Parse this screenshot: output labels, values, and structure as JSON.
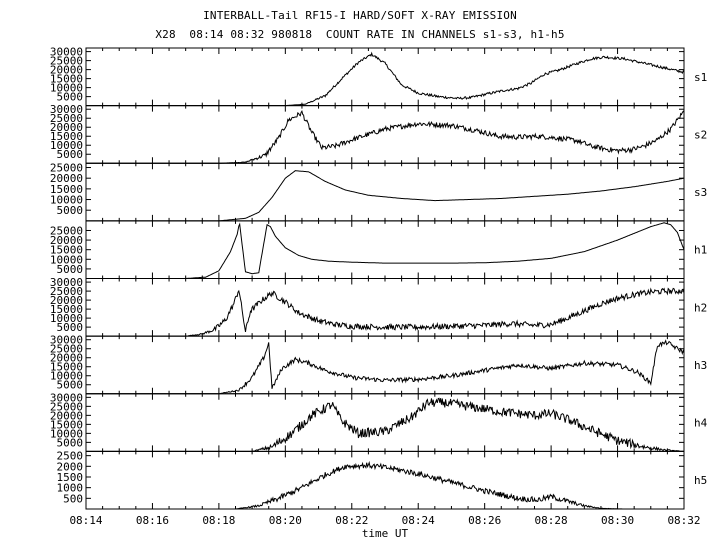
{
  "chart_data": {
    "type": "line",
    "title": "INTERBALL-Tail RF15-I HARD/SOFT X-RAY EMISSION",
    "subtitle": "X28  08:14 08:32 980818  COUNT RATE IN CHANNELS s1-s3, h1-h5",
    "xlabel": "time UT",
    "x_ticks": [
      "08:14",
      "08:16",
      "08:18",
      "08:20",
      "08:22",
      "08:24",
      "08:26",
      "08:28",
      "08:30",
      "08:32"
    ],
    "xlim_minutes": [
      0,
      18
    ],
    "panels": [
      {
        "name": "s1",
        "ylim": [
          0,
          32000
        ],
        "yticks": [
          5000,
          10000,
          15000,
          20000,
          25000,
          30000
        ],
        "x": [
          0,
          6.0,
          6.6,
          7.2,
          7.7,
          8.2,
          8.6,
          9.0,
          9.5,
          10.0,
          10.6,
          11.2,
          11.6,
          12.0,
          12.6,
          13.0,
          13.4,
          13.8,
          14.2,
          14.8,
          15.2,
          15.6,
          16.2,
          16.8,
          17.4,
          18.0
        ],
        "y": [
          0,
          0,
          800,
          5500,
          15000,
          24000,
          28500,
          23500,
          11500,
          7000,
          5000,
          4000,
          4500,
          6200,
          8500,
          9500,
          12500,
          17500,
          19500,
          23500,
          26000,
          27000,
          26000,
          23500,
          21000,
          18500
        ],
        "noise": 700
      },
      {
        "name": "s2",
        "ylim": [
          0,
          32000
        ],
        "yticks": [
          5000,
          10000,
          15000,
          20000,
          25000,
          30000
        ],
        "x": [
          0,
          4.0,
          4.8,
          5.4,
          5.8,
          6.1,
          6.5,
          6.8,
          7.1,
          7.5,
          8.0,
          9.0,
          10.0,
          11.0,
          11.8,
          12.4,
          13.0,
          13.6,
          14.2,
          14.8,
          15.2,
          15.6,
          16.0,
          16.4,
          16.8,
          17.2,
          17.6,
          18.0
        ],
        "y": [
          0,
          0,
          600,
          4500,
          14000,
          24000,
          28000,
          17000,
          8500,
          9500,
          13000,
          19000,
          22000,
          21000,
          18000,
          15000,
          14500,
          15000,
          14000,
          12500,
          9500,
          8000,
          7000,
          7500,
          9500,
          13000,
          19000,
          29000
        ],
        "noise": 1400
      },
      {
        "name": "s3",
        "ylim": [
          0,
          27000
        ],
        "yticks": [
          5000,
          10000,
          15000,
          20000,
          25000
        ],
        "x": [
          0,
          4.0,
          4.8,
          5.2,
          5.6,
          6.0,
          6.3,
          6.7,
          7.2,
          7.8,
          8.5,
          9.5,
          10.5,
          11.5,
          12.5,
          13.5,
          14.5,
          15.5,
          16.5,
          17.5,
          18.0
        ],
        "y": [
          0,
          0,
          1200,
          4000,
          11000,
          20000,
          23500,
          23000,
          18500,
          14500,
          12000,
          10500,
          9500,
          10000,
          10500,
          11500,
          12500,
          14000,
          16000,
          18500,
          20000
        ],
        "noise": 0
      },
      {
        "name": "h1",
        "ylim": [
          0,
          30000
        ],
        "yticks": [
          5000,
          10000,
          15000,
          20000,
          25000
        ],
        "x": [
          0,
          3.0,
          3.6,
          4.0,
          4.35,
          4.55,
          4.62,
          4.8,
          5.0,
          5.2,
          5.45,
          5.55,
          5.7,
          6.0,
          6.4,
          6.8,
          7.3,
          8.0,
          9.0,
          10.0,
          11.0,
          12.0,
          13.0,
          14.0,
          15.0,
          16.0,
          17.0,
          17.4,
          17.6,
          17.8,
          18.0
        ],
        "y": [
          0,
          0,
          700,
          4000,
          14000,
          23000,
          29000,
          3500,
          2500,
          3000,
          28000,
          27000,
          22000,
          16000,
          12000,
          10000,
          9000,
          8500,
          8000,
          8000,
          8000,
          8200,
          9000,
          10500,
          14000,
          20000,
          27000,
          29000,
          28000,
          24000,
          15000
        ],
        "noise": 0
      },
      {
        "name": "h2",
        "ylim": [
          0,
          32000
        ],
        "yticks": [
          5000,
          10000,
          15000,
          20000,
          25000,
          30000
        ],
        "x": [
          0,
          3.0,
          3.5,
          3.9,
          4.2,
          4.45,
          4.6,
          4.8,
          4.95,
          5.3,
          5.6,
          6.0,
          6.4,
          7.0,
          7.5,
          8.0,
          9.0,
          10.0,
          11.0,
          12.0,
          12.8,
          13.5,
          14.0,
          14.5,
          15.0,
          15.5,
          16.0,
          16.5,
          17.0,
          17.5,
          18.0
        ],
        "y": [
          0,
          0,
          1200,
          4000,
          9000,
          18000,
          26000,
          2500,
          14000,
          20000,
          24000,
          19000,
          13000,
          8500,
          6500,
          5500,
          5000,
          5000,
          5500,
          6000,
          7000,
          6000,
          6500,
          10000,
          14000,
          18000,
          21000,
          23000,
          24500,
          25000,
          25000
        ],
        "noise": 1600
      },
      {
        "name": "h3",
        "ylim": [
          0,
          32000
        ],
        "yticks": [
          5000,
          10000,
          15000,
          20000,
          25000,
          30000
        ],
        "x": [
          0,
          4.0,
          4.6,
          5.0,
          5.35,
          5.5,
          5.6,
          5.9,
          6.3,
          6.7,
          7.2,
          8.0,
          9.0,
          10.0,
          11.0,
          12.0,
          13.0,
          14.0,
          15.0,
          16.0,
          16.6,
          17.0,
          17.2,
          17.5,
          17.8,
          18.0
        ],
        "y": [
          0,
          0,
          2000,
          9000,
          20000,
          28000,
          3000,
          14000,
          19000,
          17000,
          13000,
          9000,
          7500,
          8000,
          10000,
          13000,
          16000,
          14000,
          17000,
          16000,
          12000,
          6000,
          27000,
          28500,
          25000,
          23000
        ],
        "noise": 1200
      },
      {
        "name": "h4",
        "ylim": [
          0,
          32000
        ],
        "yticks": [
          5000,
          10000,
          15000,
          20000,
          25000,
          30000
        ],
        "x": [
          0,
          5.0,
          5.6,
          6.2,
          6.8,
          7.4,
          7.7,
          8.2,
          9.0,
          9.8,
          10.3,
          10.8,
          11.5,
          12.5,
          13.5,
          14.0,
          14.6,
          15.2,
          16.0,
          16.8,
          17.4,
          18.0
        ],
        "y": [
          0,
          0,
          2500,
          10000,
          20000,
          26000,
          17000,
          10000,
          11000,
          19000,
          27000,
          27000,
          25000,
          22000,
          20000,
          21000,
          17000,
          12000,
          6000,
          2500,
          800,
          0
        ],
        "noise": 2600
      },
      {
        "name": "h5",
        "ylim": [
          0,
          2700
        ],
        "yticks": [
          500,
          1000,
          1500,
          2000,
          2500
        ],
        "x": [
          0,
          4.5,
          5.2,
          5.8,
          6.5,
          7.2,
          7.8,
          8.5,
          9.2,
          10.0,
          11.0,
          12.0,
          13.0,
          13.6,
          14.0,
          14.4,
          15.0,
          15.5,
          16.2,
          17.0,
          18.0
        ],
        "y": [
          0,
          0,
          150,
          500,
          1000,
          1600,
          2000,
          2050,
          1900,
          1650,
          1250,
          850,
          500,
          420,
          580,
          400,
          150,
          30,
          0,
          0,
          0
        ],
        "noise": 130
      }
    ]
  }
}
